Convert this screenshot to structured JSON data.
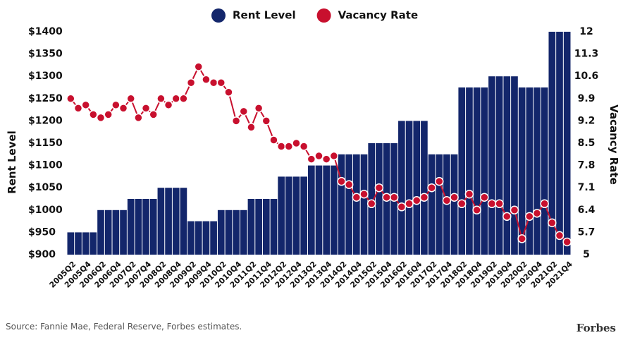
{
  "chart_data": {
    "type": "bar_line",
    "y_label": "Rent Level",
    "y2_label": "Vacancy Rate",
    "source": "Source: Fannie Mae, Federal Reserve, Forbes estimates.",
    "brand": "Forbes",
    "categories": [
      "2005Q2",
      null,
      "2005Q4",
      null,
      "2006Q2",
      null,
      "2006Q4",
      null,
      "2007Q2",
      null,
      "2007Q4",
      null,
      "2008Q2",
      null,
      "2008Q4",
      null,
      "2009Q2",
      null,
      "2009Q4",
      null,
      "2010Q2",
      null,
      "2010Q4",
      null,
      "2011Q2",
      null,
      "2011Q4",
      null,
      "2012Q2",
      null,
      "2012Q4",
      null,
      "2013Q2",
      null,
      "2013Q4",
      null,
      "2014Q2",
      null,
      "2014Q4",
      null,
      "2015Q2",
      null,
      "2015Q4",
      null,
      "2016Q2",
      null,
      "2016Q4",
      null,
      "2017Q2",
      null,
      "2017Q4",
      null,
      "2018Q2",
      null,
      "2018Q4",
      null,
      "2019Q2",
      null,
      "2019Q4",
      null,
      "2020Q2",
      null,
      "2020Q4",
      null,
      "2021Q2",
      null,
      "2021Q4"
    ],
    "series": [
      {
        "name": "Rent Level",
        "type": "bar",
        "color": "#13266b",
        "values": [
          950,
          950,
          950,
          950,
          1000,
          1000,
          1000,
          1000,
          1025,
          1025,
          1025,
          1025,
          1050,
          1050,
          1050,
          1050,
          975,
          975,
          975,
          975,
          1000,
          1000,
          1000,
          1000,
          1025,
          1025,
          1025,
          1025,
          1075,
          1075,
          1075,
          1075,
          1100,
          1100,
          1100,
          1100,
          1125,
          1125,
          1125,
          1125,
          1150,
          1150,
          1150,
          1150,
          1200,
          1200,
          1200,
          1200,
          1125,
          1125,
          1125,
          1125,
          1275,
          1275,
          1275,
          1275,
          1300,
          1300,
          1300,
          1300,
          1275,
          1275,
          1275,
          1275,
          1400,
          1400,
          1400
        ]
      },
      {
        "name": "Vacancy Rate",
        "type": "line",
        "color": "#c8102e",
        "axis": "y2",
        "values": [
          9.9,
          9.6,
          9.7,
          9.4,
          9.3,
          9.4,
          9.7,
          9.6,
          9.9,
          9.3,
          9.6,
          9.4,
          9.9,
          9.7,
          9.9,
          9.9,
          10.4,
          10.9,
          10.5,
          10.4,
          10.4,
          10.1,
          9.2,
          9.5,
          9.0,
          9.6,
          9.2,
          8.6,
          8.4,
          8.4,
          8.5,
          8.4,
          8.0,
          8.1,
          8.0,
          8.1,
          7.3,
          7.2,
          6.8,
          6.9,
          6.6,
          7.1,
          6.8,
          6.8,
          6.5,
          6.6,
          6.7,
          6.8,
          7.1,
          7.3,
          6.7,
          6.8,
          6.6,
          6.9,
          6.4,
          6.8,
          6.6,
          6.6,
          6.2,
          6.4,
          5.5,
          6.2,
          6.3,
          6.6,
          6.0,
          5.6,
          5.4
        ]
      }
    ],
    "ylim": [
      900,
      1400
    ],
    "yticks": [
      {
        "value": 900,
        "label": "$900"
      },
      {
        "value": 950,
        "label": "$950"
      },
      {
        "value": 1000,
        "label": "$1000"
      },
      {
        "value": 1050,
        "label": "$1050"
      },
      {
        "value": 1100,
        "label": "$1100"
      },
      {
        "value": 1150,
        "label": "$1150"
      },
      {
        "value": 1200,
        "label": "$1200"
      },
      {
        "value": 1250,
        "label": "$1250"
      },
      {
        "value": 1300,
        "label": "$1300"
      },
      {
        "value": 1350,
        "label": "$1350"
      },
      {
        "value": 1400,
        "label": "$1400"
      }
    ],
    "y2lim": [
      5,
      12
    ],
    "y2ticks": [
      5,
      5.7,
      6.4,
      7.1,
      7.8,
      8.5,
      9.2,
      9.9,
      10.6,
      11.3,
      12
    ],
    "legend": "top"
  }
}
